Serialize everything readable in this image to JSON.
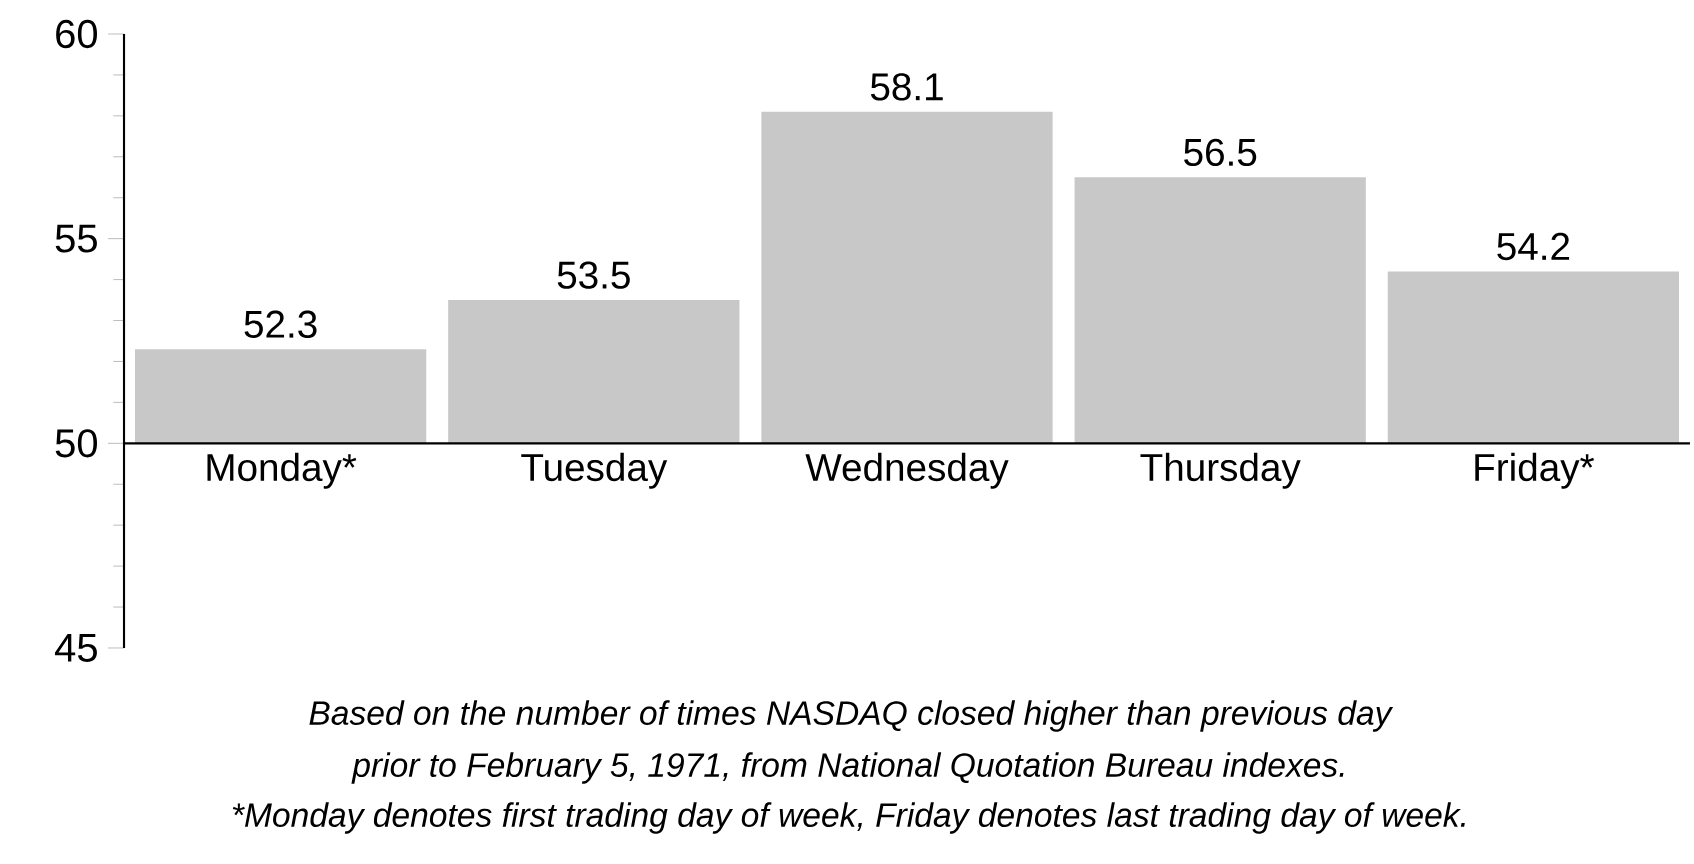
{
  "chart_data": {
    "type": "bar",
    "categories": [
      "Monday*",
      "Tuesday",
      "Wednesday",
      "Thursday",
      "Friday*"
    ],
    "base": [
      50,
      50,
      50,
      50,
      50
    ],
    "values": [
      2.3,
      3.5,
      8.1,
      6.5,
      4.2
    ],
    "value_labels": [
      "52.3",
      "53.5",
      "58.1",
      "56.5",
      "54.2"
    ],
    "color": "#c8c8c8",
    "ylim": [
      45,
      60
    ],
    "yticks": [
      45,
      50,
      55,
      60
    ],
    "annotations": [
      "Based on the number of times NASDAQ closed higher than previous day",
      "prior to February 5, 1971, from National Quotation Bureau indexes.",
      "*Monday denotes first trading day of week, Friday denotes last trading day of week."
    ],
    "grid": false
  }
}
